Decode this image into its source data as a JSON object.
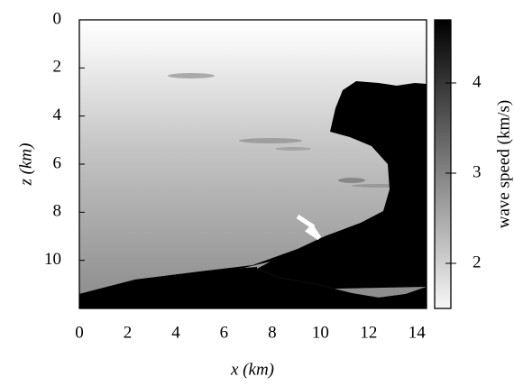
{
  "chart_data": {
    "type": "heatmap",
    "xlabel": "x (km)",
    "ylabel": "z (km)",
    "xlim": [
      0,
      14.4
    ],
    "xticks": [
      0,
      2,
      4,
      6,
      8,
      10,
      12,
      14
    ],
    "ylim": [
      0,
      12
    ],
    "yticks": [
      0,
      2,
      4,
      6,
      8,
      10
    ],
    "y_inverted": true,
    "colorbar": {
      "label": "wave speed (km/s)",
      "lim": [
        1.5,
        4.7
      ],
      "ticks": [
        2,
        3,
        4
      ],
      "colors": [
        "#f7f7f7",
        "#000000"
      ]
    }
  }
}
